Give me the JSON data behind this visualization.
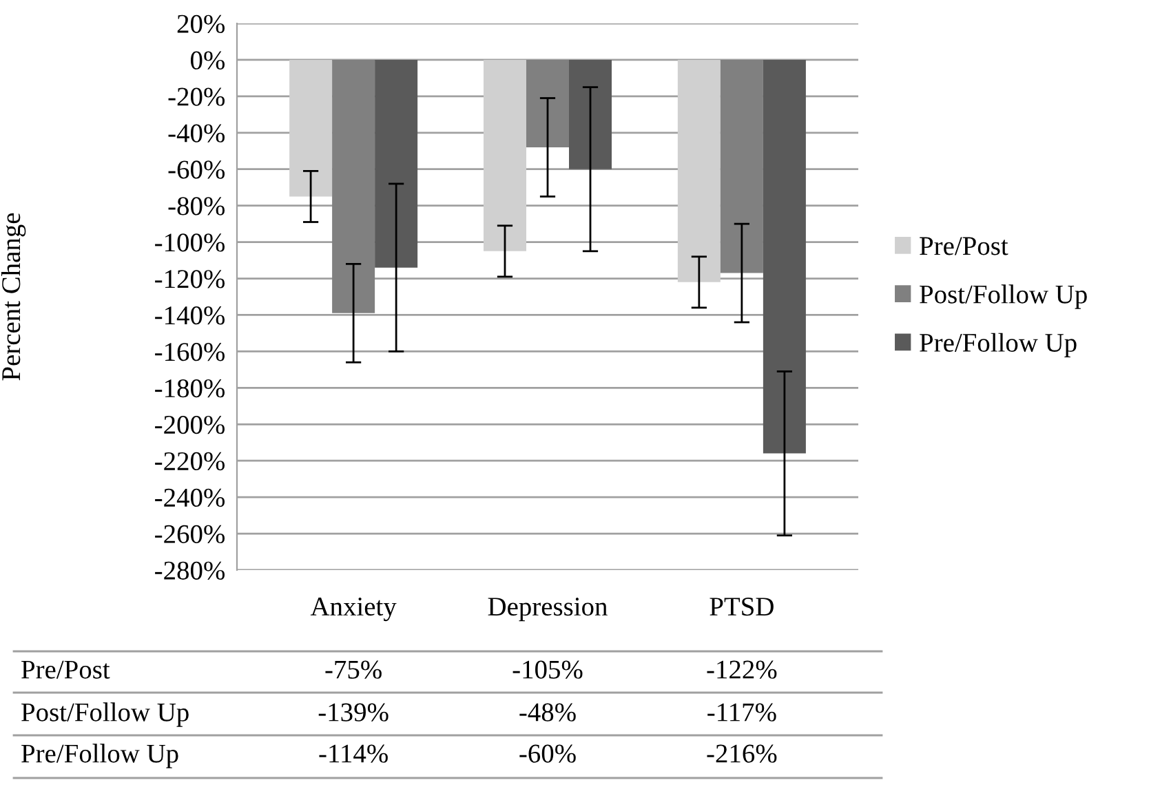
{
  "chart_data": {
    "type": "bar",
    "ylabel": "Percent Change",
    "categories": [
      "Anxiety",
      "Depression",
      "PTSD"
    ],
    "series": [
      {
        "name": "Pre/Post",
        "color": "#d0d0d0",
        "values": [
          -75,
          -105,
          -122
        ],
        "errors": [
          14,
          14,
          14
        ],
        "value_labels": [
          "-75%",
          "-105%",
          "-122%"
        ]
      },
      {
        "name": "Post/Follow Up",
        "color": "#808080",
        "values": [
          -139,
          -48,
          -117
        ],
        "errors": [
          27,
          27,
          27
        ],
        "value_labels": [
          "-139%",
          "-48%",
          "-117%"
        ]
      },
      {
        "name": "Pre/Follow Up",
        "color": "#5a5a5a",
        "values": [
          -114,
          -60,
          -216
        ],
        "errors": [
          46,
          45,
          45
        ],
        "value_labels": [
          "-114%",
          "-60%",
          "-216%"
        ]
      }
    ],
    "ylim": [
      -280,
      20
    ],
    "yticks": [
      {
        "value": 20,
        "label": "20%"
      },
      {
        "value": 0,
        "label": "0%"
      },
      {
        "value": -20,
        "label": "-20%"
      },
      {
        "value": -40,
        "label": "-40%"
      },
      {
        "value": -60,
        "label": "-60%"
      },
      {
        "value": -80,
        "label": "-80%"
      },
      {
        "value": -100,
        "label": "-100%"
      },
      {
        "value": -120,
        "label": "-120%"
      },
      {
        "value": -140,
        "label": "-140%"
      },
      {
        "value": -160,
        "label": "-160%"
      },
      {
        "value": -180,
        "label": "-180%"
      },
      {
        "value": -200,
        "label": "-200%"
      },
      {
        "value": -220,
        "label": "-220%"
      },
      {
        "value": -240,
        "label": "-240%"
      },
      {
        "value": -260,
        "label": "-260%"
      },
      {
        "value": -280,
        "label": "-280%"
      }
    ],
    "grid": "y",
    "legend": "right"
  }
}
